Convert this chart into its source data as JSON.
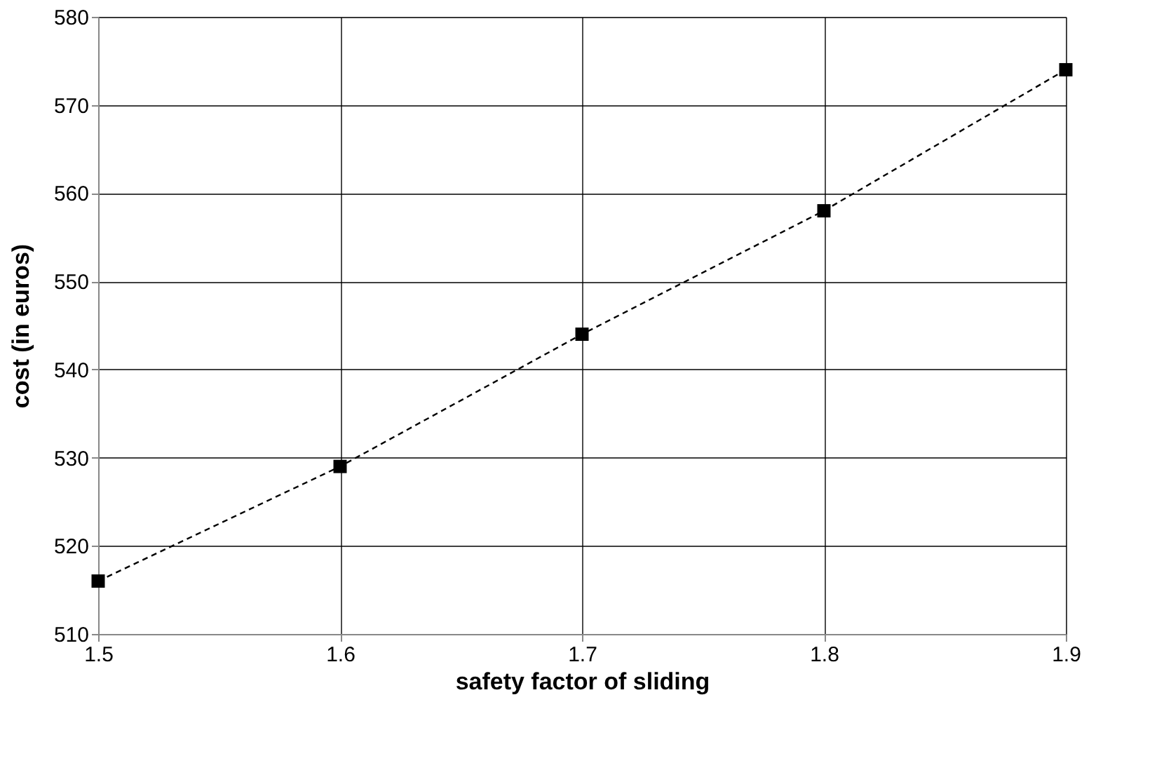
{
  "chart_data": {
    "type": "line",
    "xlabel": "safety factor of sliding",
    "ylabel": "cost (in euros)",
    "x": [
      1.5,
      1.6,
      1.7,
      1.8,
      1.9
    ],
    "series": [
      {
        "color": "#000000",
        "values": [
          516,
          529,
          544,
          558,
          574
        ]
      }
    ],
    "xlim": [
      1.5,
      1.9
    ],
    "xticks": [
      1.5,
      1.6,
      1.7,
      1.8,
      1.9
    ],
    "ylim": [
      510,
      580
    ],
    "yticks": [
      510,
      520,
      530,
      540,
      550,
      560,
      570,
      580
    ],
    "grid": true,
    "marker": "square",
    "line_style": "dashed"
  }
}
